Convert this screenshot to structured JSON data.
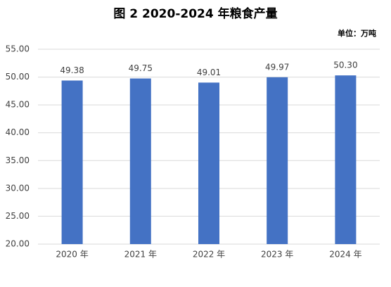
{
  "chart_data": {
    "type": "bar",
    "title": "图 2    2020-2024 年粮食产量",
    "unit_label": "单位：万吨",
    "categories": [
      "2020 年",
      "2021 年",
      "2022 年",
      "2023 年",
      "2024 年"
    ],
    "values": [
      49.38,
      49.75,
      49.01,
      49.97,
      50.3
    ],
    "value_labels": [
      "49.38",
      "49.75",
      "49.01",
      "49.97",
      "50.30"
    ],
    "color": "#4472c4",
    "ylim": [
      20,
      55
    ],
    "yticks": [
      {
        "value": 20,
        "label": "20.00"
      },
      {
        "value": 25,
        "label": "25.00"
      },
      {
        "value": 30,
        "label": "30.00"
      },
      {
        "value": 35,
        "label": "35.00"
      },
      {
        "value": 40,
        "label": "40.00"
      },
      {
        "value": 45,
        "label": "45.00"
      },
      {
        "value": 50,
        "label": "50.00"
      },
      {
        "value": 55,
        "label": "55.00"
      }
    ],
    "grid": true
  }
}
